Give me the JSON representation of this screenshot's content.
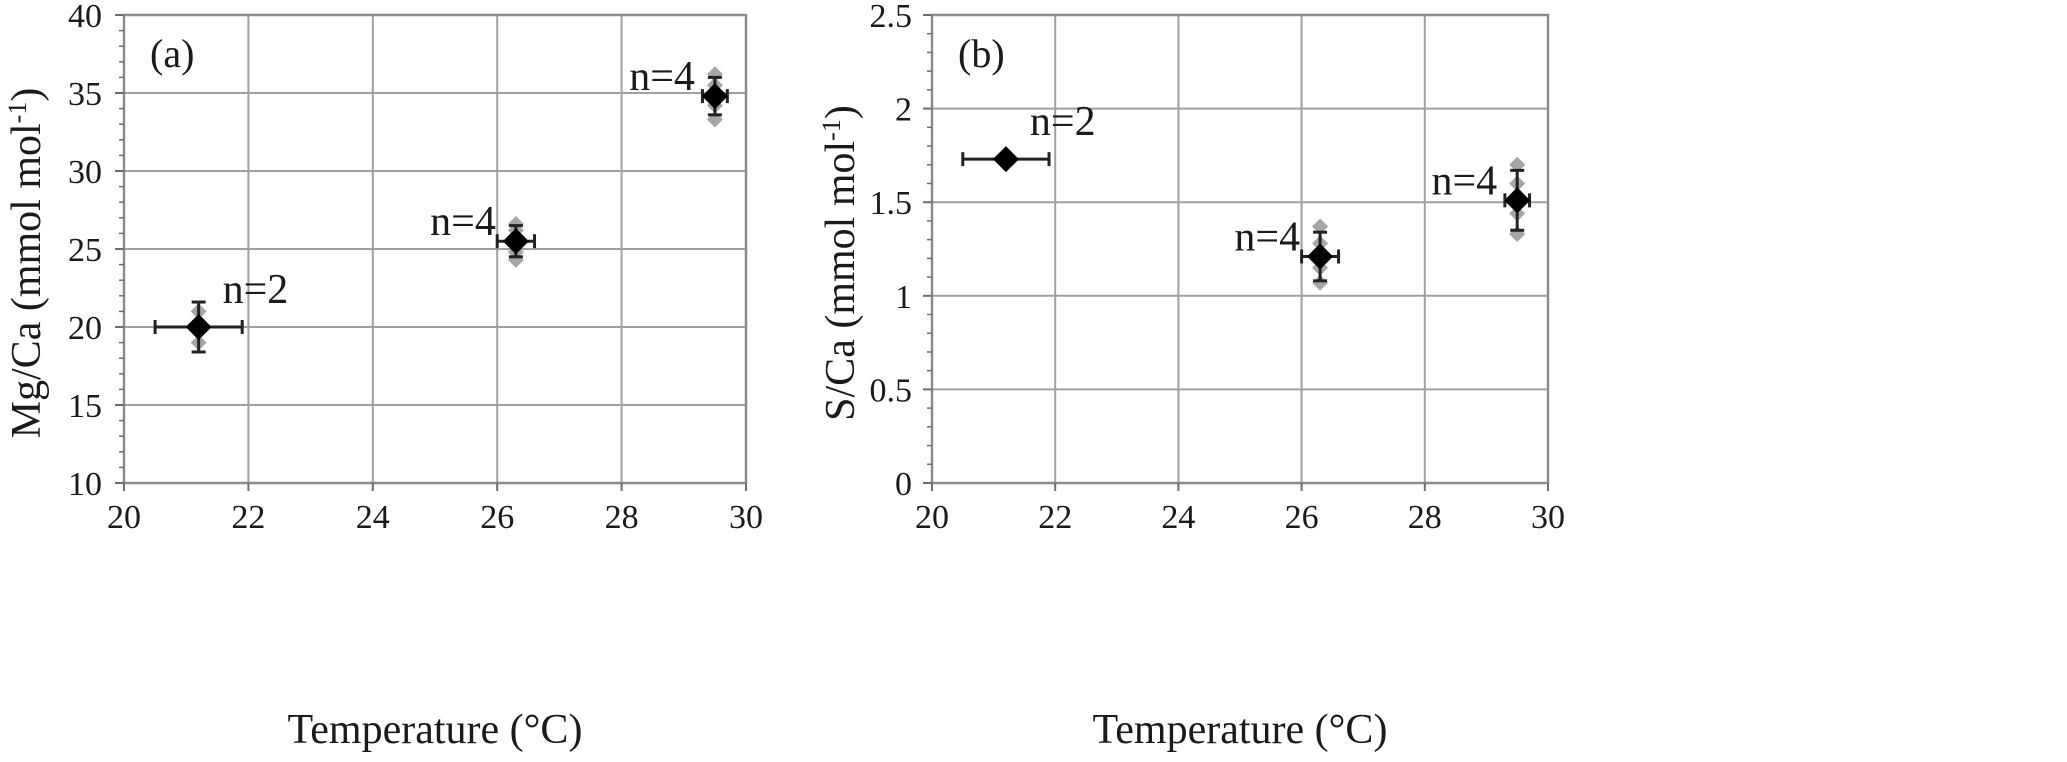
{
  "chart_data": [
    {
      "type": "scatter",
      "panel_label": "(a)",
      "xlabel": "Temperature (°C)",
      "ylabel_main": "Mg/Ca (mmol mol",
      "ylabel_sup": "-1",
      "ylabel_close": ")",
      "xlim": [
        20,
        30
      ],
      "ylim": [
        10,
        40
      ],
      "xticks": [
        20,
        22,
        24,
        26,
        28,
        30
      ],
      "yticks": [
        10,
        15,
        20,
        25,
        30,
        35,
        40
      ],
      "grid": true,
      "minor_y_ticks": 5,
      "colors": {
        "mean_marker": "#000000",
        "replicate_marker": "#a6a6a6",
        "grid": "#a0a0a0",
        "error_bar": "#222222"
      },
      "points": [
        {
          "x": 21.2,
          "y": 20.0,
          "xerr": 0.7,
          "yerr": 1.6,
          "label": "n=2",
          "label_pos": "upper-right",
          "replicates": [
            19.0,
            21.0
          ]
        },
        {
          "x": 26.3,
          "y": 25.5,
          "xerr": 0.3,
          "yerr": 1.0,
          "label": "n=4",
          "label_pos": "upper-left",
          "replicates": [
            24.3,
            24.8,
            26.2,
            26.6
          ]
        },
        {
          "x": 29.5,
          "y": 34.8,
          "xerr": 0.2,
          "yerr": 1.2,
          "label": "n=4",
          "label_pos": "upper-left",
          "replicates": [
            33.3,
            34.2,
            35.5,
            36.2
          ]
        }
      ]
    },
    {
      "type": "scatter",
      "panel_label": "(b)",
      "xlabel": "Temperature (°C)",
      "ylabel_main": "S/Ca (mmol mol",
      "ylabel_sup": "-1",
      "ylabel_close": ")",
      "xlim": [
        20,
        30
      ],
      "ylim": [
        0,
        2.5
      ],
      "xticks": [
        20,
        22,
        24,
        26,
        28,
        30
      ],
      "yticks": [
        0,
        0.5,
        1,
        1.5,
        2,
        2.5
      ],
      "grid": true,
      "minor_y_ticks": 5,
      "colors": {
        "mean_marker": "#000000",
        "replicate_marker": "#a6a6a6",
        "grid": "#a0a0a0",
        "error_bar": "#222222"
      },
      "points": [
        {
          "x": 21.2,
          "y": 1.73,
          "xerr": 0.7,
          "yerr": 0,
          "label": "n=2",
          "label_pos": "upper-right",
          "replicates": []
        },
        {
          "x": 26.3,
          "y": 1.21,
          "xerr": 0.3,
          "yerr": 0.13,
          "label": "n=4",
          "label_pos": "upper-left",
          "replicates": [
            1.07,
            1.15,
            1.28,
            1.37
          ]
        },
        {
          "x": 29.5,
          "y": 1.51,
          "xerr": 0.2,
          "yerr": 0.16,
          "label": "n=4",
          "label_pos": "upper-left",
          "replicates": [
            1.33,
            1.44,
            1.6,
            1.7
          ]
        }
      ]
    }
  ]
}
